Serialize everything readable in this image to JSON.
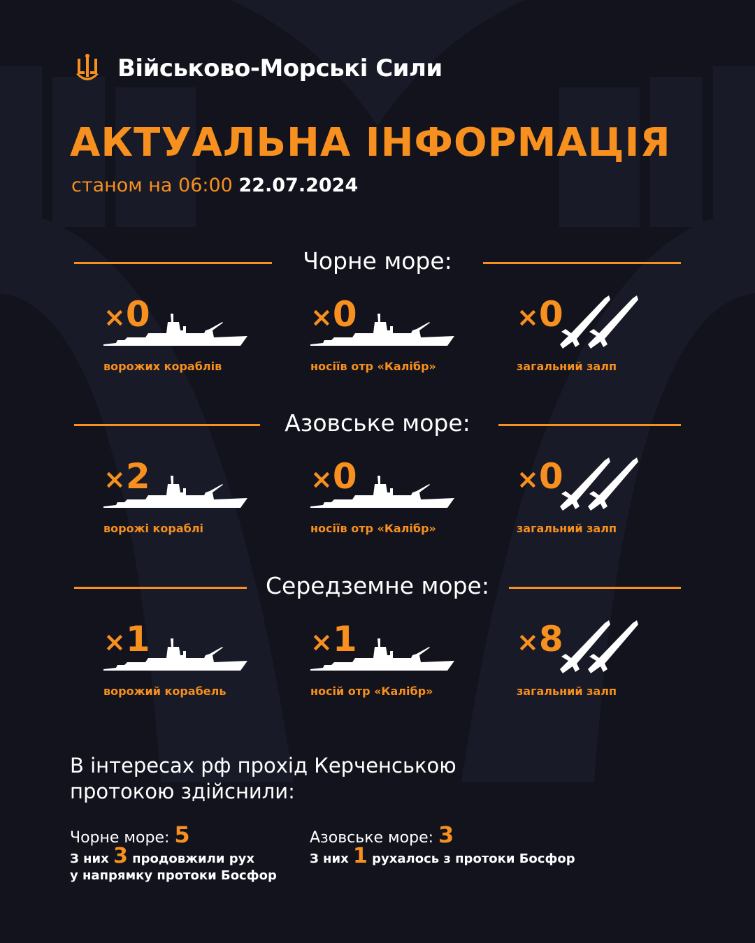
{
  "brand": {
    "name": "Військово-Морські Сили",
    "logo": "trident-anchor-icon"
  },
  "title": "АКТУАЛЬНА ІНФОРМАЦІЯ",
  "subtitle": {
    "prefix": "станом на 06:00",
    "date": "22.07.2024"
  },
  "colors": {
    "accent": "#f7901e",
    "background": "#12131d",
    "text": "#ffffff"
  },
  "seas": [
    {
      "name": "Чорне море:",
      "items": [
        {
          "count": "0",
          "label": "ворожих кораблів",
          "icon": "ship-icon"
        },
        {
          "count": "0",
          "label": "носіїв отр «Калібр»",
          "icon": "ship-icon"
        },
        {
          "count": "0",
          "label": "загальний залп",
          "icon": "missiles-icon"
        }
      ]
    },
    {
      "name": "Азовське море:",
      "items": [
        {
          "count": "2",
          "label": "ворожі кораблі",
          "icon": "ship-icon"
        },
        {
          "count": "0",
          "label": "носіїв отр «Калібр»",
          "icon": "ship-icon"
        },
        {
          "count": "0",
          "label": "загальний залп",
          "icon": "missiles-icon"
        }
      ]
    },
    {
      "name": "Середземне море:",
      "items": [
        {
          "count": "1",
          "label": "ворожий корабель",
          "icon": "ship-icon"
        },
        {
          "count": "1",
          "label": "носій отр «Калібр»",
          "icon": "ship-icon"
        },
        {
          "count": "8",
          "label": "загальний залп",
          "icon": "missiles-icon"
        }
      ]
    }
  ],
  "kerch": {
    "text": "В інтересах рф прохід Керченською протокою здійснили:",
    "black": {
      "label": "Чорне море:",
      "value": "5",
      "pre": "З них",
      "num": "3",
      "post": "продовжили рух",
      "line2": "у напрямку протоки Босфор"
    },
    "azov": {
      "label": "Азовське море:",
      "value": "3",
      "pre": "З них",
      "num": "1",
      "post": "рухалось з протоки Босфор"
    }
  }
}
